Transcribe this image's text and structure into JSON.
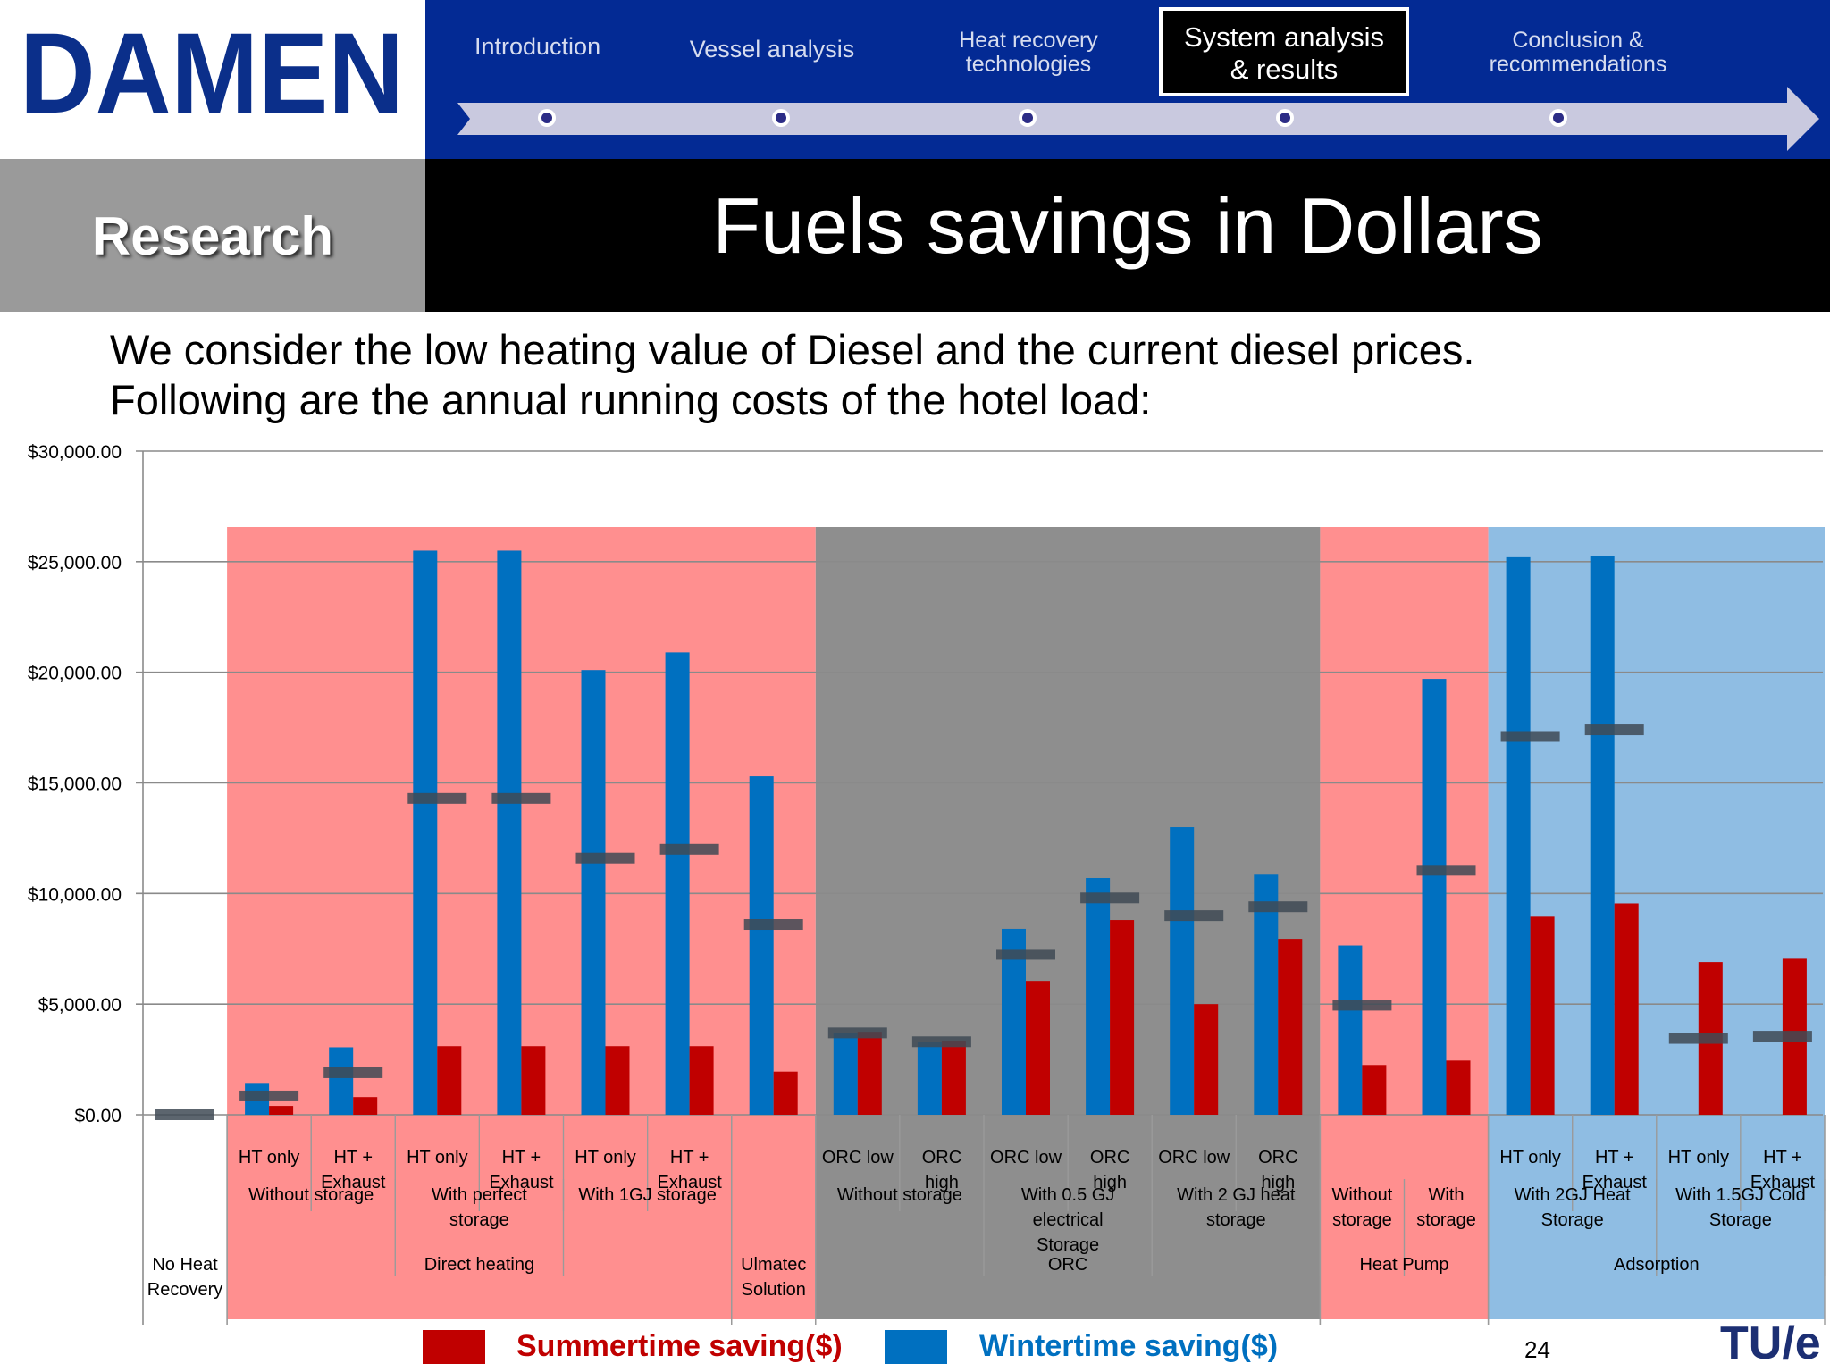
{
  "header": {
    "logo_text": "DAMEN",
    "nav": [
      {
        "label": "Introduction"
      },
      {
        "label": "Vessel analysis"
      },
      {
        "label_lines": [
          "Heat recovery",
          "technologies"
        ]
      },
      {
        "label_lines": [
          "Conclusion &",
          "recommendations"
        ]
      }
    ],
    "active_nav_lines": [
      "System analysis",
      "& results"
    ],
    "section_label": "Research",
    "title": "Fuels savings in Dollars"
  },
  "intro_lines": [
    "We consider the low heating value of Diesel and the current diesel prices.",
    "Following are the annual running costs of the hotel load:"
  ],
  "legend": {
    "summer": "Summertime saving($)",
    "winter": "Wintertime saving($)"
  },
  "colors": {
    "summer": "#c00000",
    "winter": "#0070c0",
    "average_marker": "#3f4a55",
    "bg_direct_heating": "#ff8f8f",
    "bg_orc": "#8e8e8e",
    "bg_heat_pump": "#ff8f8f",
    "bg_adsorption": "#8fbde3"
  },
  "footer": {
    "page_number": "24",
    "tue_logo": "TU/e"
  },
  "chart_data": {
    "type": "bar",
    "ylim": [
      0,
      30000
    ],
    "ytick_values": [
      0,
      5000,
      10000,
      15000,
      20000,
      25000,
      30000
    ],
    "ytick_labels": [
      "$0.00",
      "$5,000.00",
      "$10,000.00",
      "$15,000.00",
      "$20,000.00",
      "$25,000.00",
      "$30,000.00"
    ],
    "categories": [
      {
        "label": "",
        "winter": 0,
        "summer": 0,
        "marker": 0
      },
      {
        "label": "HT only",
        "winter": 1400,
        "summer": 400,
        "marker": 850
      },
      {
        "label": "HT + Exhaust",
        "winter": 3050,
        "summer": 800,
        "marker": 1900
      },
      {
        "label": "HT only",
        "winter": 25500,
        "summer": 3100,
        "marker": 14300
      },
      {
        "label": "HT + Exhaust",
        "winter": 25500,
        "summer": 3100,
        "marker": 14300
      },
      {
        "label": "HT only",
        "winter": 20100,
        "summer": 3100,
        "marker": 11600
      },
      {
        "label": "HT + Exhaust",
        "winter": 20900,
        "summer": 3100,
        "marker": 12000
      },
      {
        "label": "",
        "winter": 15300,
        "summer": 1950,
        "marker": 8600
      },
      {
        "label": "ORC low",
        "winter": 3700,
        "summer": 3750,
        "marker": 3700
      },
      {
        "label": "ORC high",
        "winter": 3300,
        "summer": 3350,
        "marker": 3300
      },
      {
        "label": "ORC low",
        "winter": 8400,
        "summer": 6050,
        "marker": 7250
      },
      {
        "label": "ORC high",
        "winter": 10700,
        "summer": 8800,
        "marker": 9800
      },
      {
        "label": "ORC low",
        "winter": 13000,
        "summer": 5000,
        "marker": 9000
      },
      {
        "label": "ORC high",
        "winter": 10850,
        "summer": 7950,
        "marker": 9400
      },
      {
        "label": "",
        "winter": 7650,
        "summer": 2250,
        "marker": 4950
      },
      {
        "label": "",
        "winter": 19700,
        "summer": 2450,
        "marker": 11050
      },
      {
        "label": "HT only",
        "winter": 25200,
        "summer": 8950,
        "marker": 17100
      },
      {
        "label": "HT + Exhaust",
        "winter": 25250,
        "summer": 9550,
        "marker": 17400
      },
      {
        "label": "HT only",
        "winter": 0,
        "summer": 6900,
        "marker": 3450
      },
      {
        "label": "HT + Exhaust",
        "winter": 0,
        "summer": 7050,
        "marker": 3550
      }
    ],
    "subgroups": [
      {
        "label": "Without storage",
        "start": 1,
        "end": 2
      },
      {
        "label": "With perfect storage",
        "start": 3,
        "end": 4
      },
      {
        "label": "With 1GJ storage",
        "start": 5,
        "end": 6
      },
      {
        "label": "Without storage",
        "start": 8,
        "end": 9
      },
      {
        "label": "With 0.5 GJ electrical Storage",
        "start": 10,
        "end": 11
      },
      {
        "label": "With 2 GJ heat storage",
        "start": 12,
        "end": 13
      },
      {
        "label": "Without storage",
        "start": 14,
        "end": 14
      },
      {
        "label": "With storage",
        "start": 15,
        "end": 15
      },
      {
        "label": "With 2GJ Heat Storage",
        "start": 16,
        "end": 17
      },
      {
        "label": "With 1.5GJ Cold Storage",
        "start": 18,
        "end": 19
      }
    ],
    "groups": [
      {
        "label": "No Heat Recovery",
        "start": 0,
        "end": 0
      },
      {
        "label": "Direct heating",
        "start": 1,
        "end": 6
      },
      {
        "label": "Ulmatec Solution",
        "start": 7,
        "end": 7
      },
      {
        "label": "ORC",
        "start": 8,
        "end": 13
      },
      {
        "label": "Heat Pump",
        "start": 14,
        "end": 15
      },
      {
        "label": "Adsorption",
        "start": 16,
        "end": 19
      }
    ],
    "shaded_regions": [
      {
        "start": 1,
        "end": 7,
        "color": "#ff8f8f"
      },
      {
        "start": 8,
        "end": 13,
        "color": "#8e8e8e"
      },
      {
        "start": 14,
        "end": 15,
        "color": "#ff8f8f"
      },
      {
        "start": 16,
        "end": 19,
        "color": "#8fbde3"
      }
    ],
    "series": [
      {
        "name": "Summertime saving($)",
        "key": "summer"
      },
      {
        "name": "Wintertime saving($)",
        "key": "winter"
      }
    ]
  }
}
